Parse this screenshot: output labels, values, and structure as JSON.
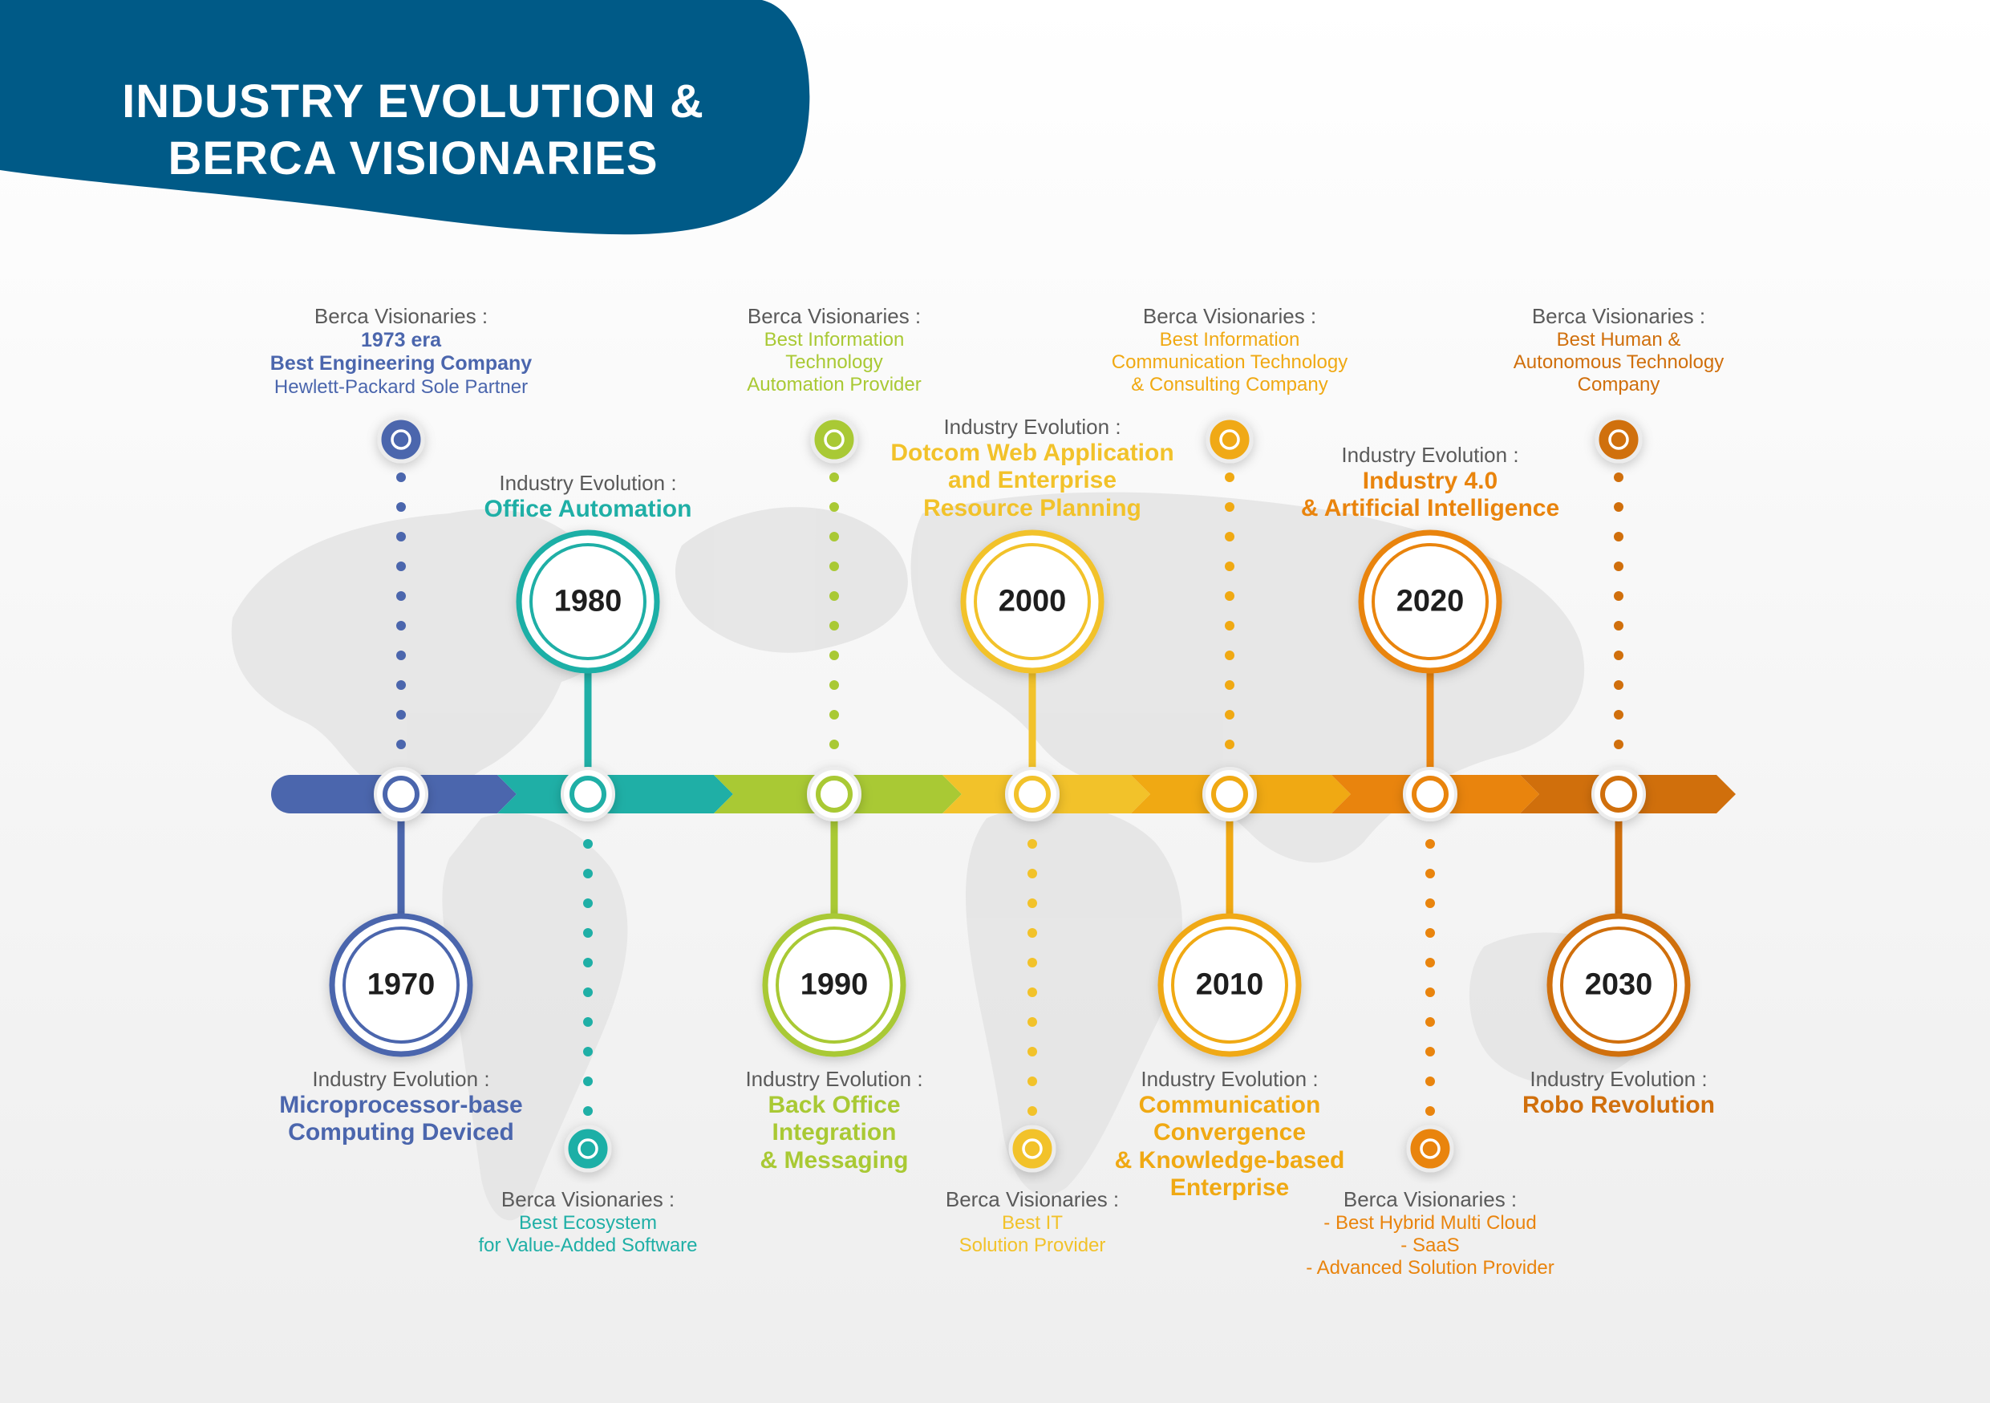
{
  "title": [
    "INDUSTRY EVOLUTION &",
    "BERCA VISIONARIES"
  ],
  "nodes": [
    {
      "year": "1970",
      "color": "#4b66ad",
      "pos": "bottom",
      "evolution": {
        "caption": "Industry Evolution :",
        "lines": [
          "Microprocessor-base",
          "Computing Deviced"
        ]
      },
      "visionary": {
        "caption": "Berca Visionaries :",
        "lines": [
          {
            "text": "1973 era",
            "bold": true
          },
          {
            "text": "Best Engineering Company",
            "bold": true
          },
          {
            "text": "Hewlett-Packard Sole Partner",
            "bold": false
          }
        ]
      }
    },
    {
      "year": "1980",
      "color": "#1fafa6",
      "pos": "top",
      "evolution": {
        "caption": "Industry Evolution :",
        "lines": [
          "Office Automation"
        ]
      },
      "visionary": {
        "caption": "Berca Visionaries :",
        "lines": [
          {
            "text": "Best Ecosystem",
            "bold": false
          },
          {
            "text": "for Value-Added Software",
            "bold": false
          }
        ]
      }
    },
    {
      "year": "1990",
      "color": "#a9c934",
      "pos": "bottom",
      "evolution": {
        "caption": "Industry Evolution :",
        "lines": [
          "Back Office",
          "Integration",
          "& Messaging"
        ]
      },
      "visionary": {
        "caption": "Berca Visionaries :",
        "lines": [
          {
            "text": "Best Information",
            "bold": false
          },
          {
            "text": "Technology",
            "bold": false
          },
          {
            "text": "Automation Provider",
            "bold": false
          }
        ]
      }
    },
    {
      "year": "2000",
      "color": "#f2c22a",
      "pos": "top",
      "evolution": {
        "caption": "Industry Evolution :",
        "lines": [
          "Dotcom Web Application",
          "and Enterprise",
          "Resource Planning"
        ]
      },
      "visionary": {
        "caption": "Berca Visionaries :",
        "lines": [
          {
            "text": "Best IT",
            "bold": false
          },
          {
            "text": "Solution Provider",
            "bold": false
          }
        ]
      }
    },
    {
      "year": "2010",
      "color": "#f0a913",
      "pos": "bottom",
      "evolution": {
        "caption": "Industry Evolution :",
        "lines": [
          "Communication",
          "Convergence",
          "& Knowledge-based",
          "Enterprise"
        ]
      },
      "visionary": {
        "caption": "Berca Visionaries :",
        "lines": [
          {
            "text": "Best Information",
            "bold": false
          },
          {
            "text": "Communication Technology",
            "bold": false
          },
          {
            "text": "& Consulting Company",
            "bold": false
          }
        ]
      }
    },
    {
      "year": "2020",
      "color": "#e9840d",
      "pos": "top",
      "evolution": {
        "caption": "Industry Evolution :",
        "lines": [
          "Industry 4.0",
          "& Artificial Intelligence"
        ]
      },
      "visionary": {
        "caption": "Berca Visionaries :",
        "lines": [
          {
            "text": "- Best Hybrid Multi Cloud",
            "bold": false
          },
          {
            "text": "- SaaS",
            "bold": false
          },
          {
            "text": "- Advanced Solution Provider",
            "bold": false
          }
        ]
      }
    },
    {
      "year": "2030",
      "color": "#d06f0c",
      "pos": "bottom",
      "evolution": {
        "caption": "Industry Evolution :",
        "lines": [
          "Robo Revolution"
        ]
      },
      "visionary": {
        "caption": "Berca Visionaries :",
        "lines": [
          {
            "text": "Best Human &",
            "bold": false
          },
          {
            "text": "Autonomous Technology",
            "bold": false
          },
          {
            "text": "Company",
            "bold": false
          }
        ]
      }
    }
  ]
}
